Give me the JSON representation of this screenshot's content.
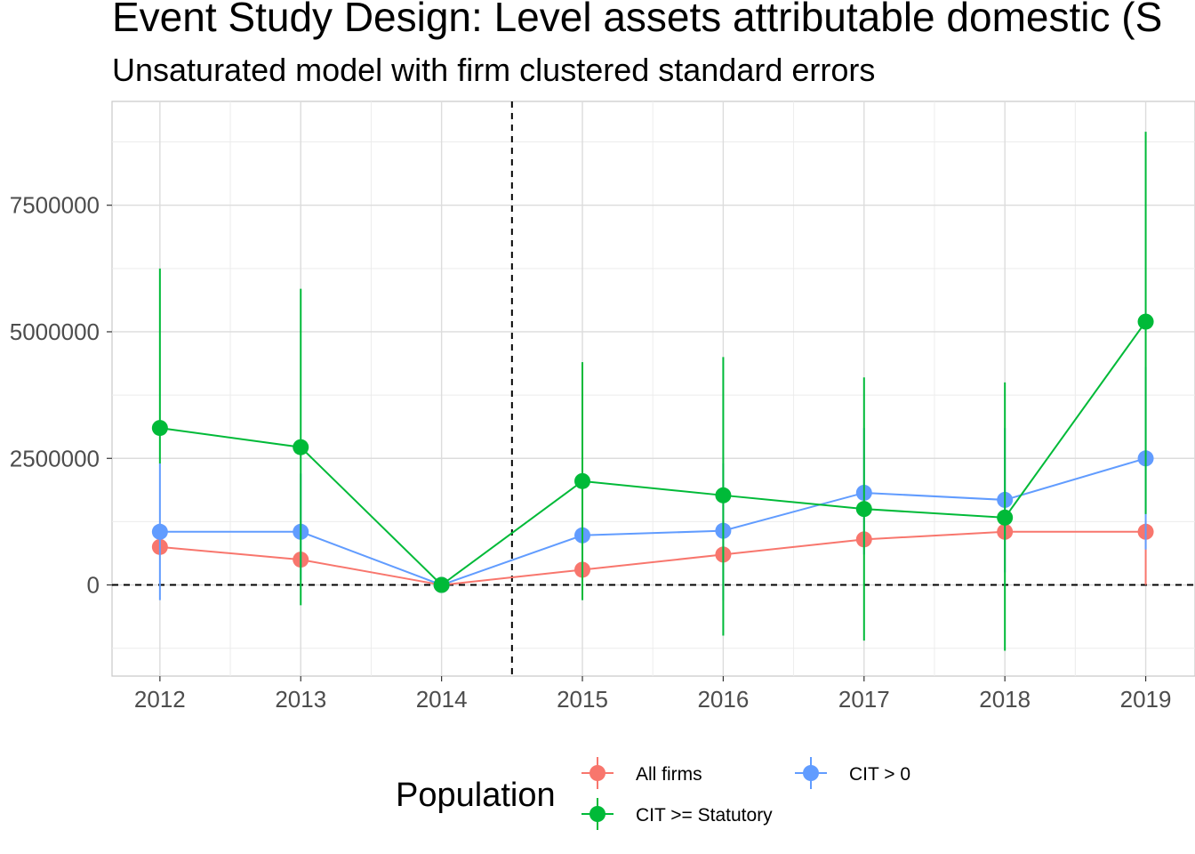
{
  "chart_data": {
    "type": "line",
    "title": "Event Study Design: Level assets attributable domestic  (S",
    "subtitle": "Unsaturated model with firm clustered standard errors",
    "xlabel": "",
    "ylabel": "",
    "x": [
      2012,
      2013,
      2014,
      2015,
      2016,
      2017,
      2018,
      2019
    ],
    "x_tick_labels": [
      "2012",
      "2013",
      "2014",
      "2015",
      "2016",
      "2017",
      "2018",
      "2019"
    ],
    "xlim": [
      2011.66,
      2019.35
    ],
    "ylim": [
      -1800000,
      9550000
    ],
    "y_ticks": [
      0,
      2500000,
      5000000,
      7500000
    ],
    "y_tick_labels": [
      "0",
      "2500000",
      "5000000",
      "7500000"
    ],
    "reference_lines": {
      "vertical_x": 2014.5,
      "horizontal_y": 0,
      "style": "dashed"
    },
    "grid": true,
    "legend": {
      "title": "Population",
      "position": "bottom"
    },
    "series": [
      {
        "name": "All firms",
        "color": "#F8766D",
        "values": [
          750000,
          500000,
          0,
          300000,
          600000,
          900000,
          1050000,
          1050000
        ],
        "ci_low": [
          null,
          null,
          null,
          null,
          null,
          null,
          null,
          0
        ],
        "ci_high": [
          null,
          null,
          null,
          null,
          null,
          null,
          null,
          1050000
        ]
      },
      {
        "name": "CIT > 0",
        "color": "#619CFF",
        "values": [
          1050000,
          1050000,
          0,
          980000,
          1070000,
          1820000,
          1680000,
          2500000
        ],
        "ci_low": [
          -300000,
          100000,
          0,
          200000,
          -300000,
          600000,
          250000,
          700000
        ],
        "ci_high": [
          2400000,
          2200000,
          0,
          1900000,
          2400000,
          3100000,
          3100000,
          4300000
        ]
      },
      {
        "name": "CIT >= Statutory",
        "color": "#00BA38",
        "values": [
          3100000,
          2720000,
          0,
          2050000,
          1770000,
          1500000,
          1330000,
          5200000
        ],
        "ci_low": [
          2400000,
          -400000,
          0,
          -300000,
          -1000000,
          -1100000,
          -1300000,
          1400000
        ],
        "ci_high": [
          6250000,
          5850000,
          0,
          4400000,
          4500000,
          4100000,
          4000000,
          8950000
        ]
      }
    ]
  }
}
